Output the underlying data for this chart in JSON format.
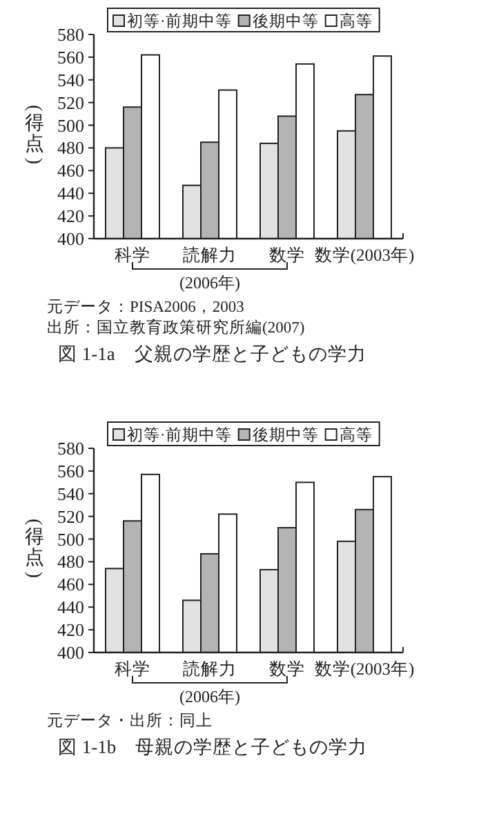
{
  "chart_data": [
    {
      "type": "bar",
      "title": "図 1-1a　父親の学歴と子どもの学力",
      "ylabel": "(得点)",
      "categories": [
        "科学",
        "読解力",
        "数学",
        "数学(2003年)"
      ],
      "series": [
        {
          "name": "初等·前期中等",
          "color": "#e2e2e2",
          "values": [
            480,
            447,
            484,
            495
          ]
        },
        {
          "name": "後期中等",
          "color": "#b4b4b4",
          "values": [
            516,
            485,
            508,
            527
          ]
        },
        {
          "name": "高等",
          "color": "#ffffff",
          "values": [
            562,
            531,
            554,
            561
          ]
        }
      ],
      "ylim": [
        400,
        580
      ],
      "yticks": [
        400,
        420,
        440,
        460,
        480,
        500,
        520,
        540,
        560,
        580
      ],
      "legend": "top",
      "grid": false,
      "annotations": [
        "(2006年)",
        "元データ：PISA2006，2003",
        "出所：国立教育政策研究所編(2007)"
      ]
    },
    {
      "type": "bar",
      "title": "図 1-1b　母親の学歴と子どもの学力",
      "ylabel": "(得点)",
      "categories": [
        "科学",
        "読解力",
        "数学",
        "数学(2003年)"
      ],
      "series": [
        {
          "name": "初等·前期中等",
          "color": "#e2e2e2",
          "values": [
            474,
            446,
            473,
            498
          ]
        },
        {
          "name": "後期中等",
          "color": "#b4b4b4",
          "values": [
            516,
            487,
            510,
            526
          ]
        },
        {
          "name": "高等",
          "color": "#ffffff",
          "values": [
            557,
            522,
            550,
            555
          ]
        }
      ],
      "ylim": [
        400,
        580
      ],
      "yticks": [
        400,
        420,
        440,
        460,
        480,
        500,
        520,
        540,
        560,
        580
      ],
      "legend": "top",
      "grid": false,
      "annotations": [
        "(2006年)",
        "元データ・出所：同上"
      ]
    }
  ]
}
